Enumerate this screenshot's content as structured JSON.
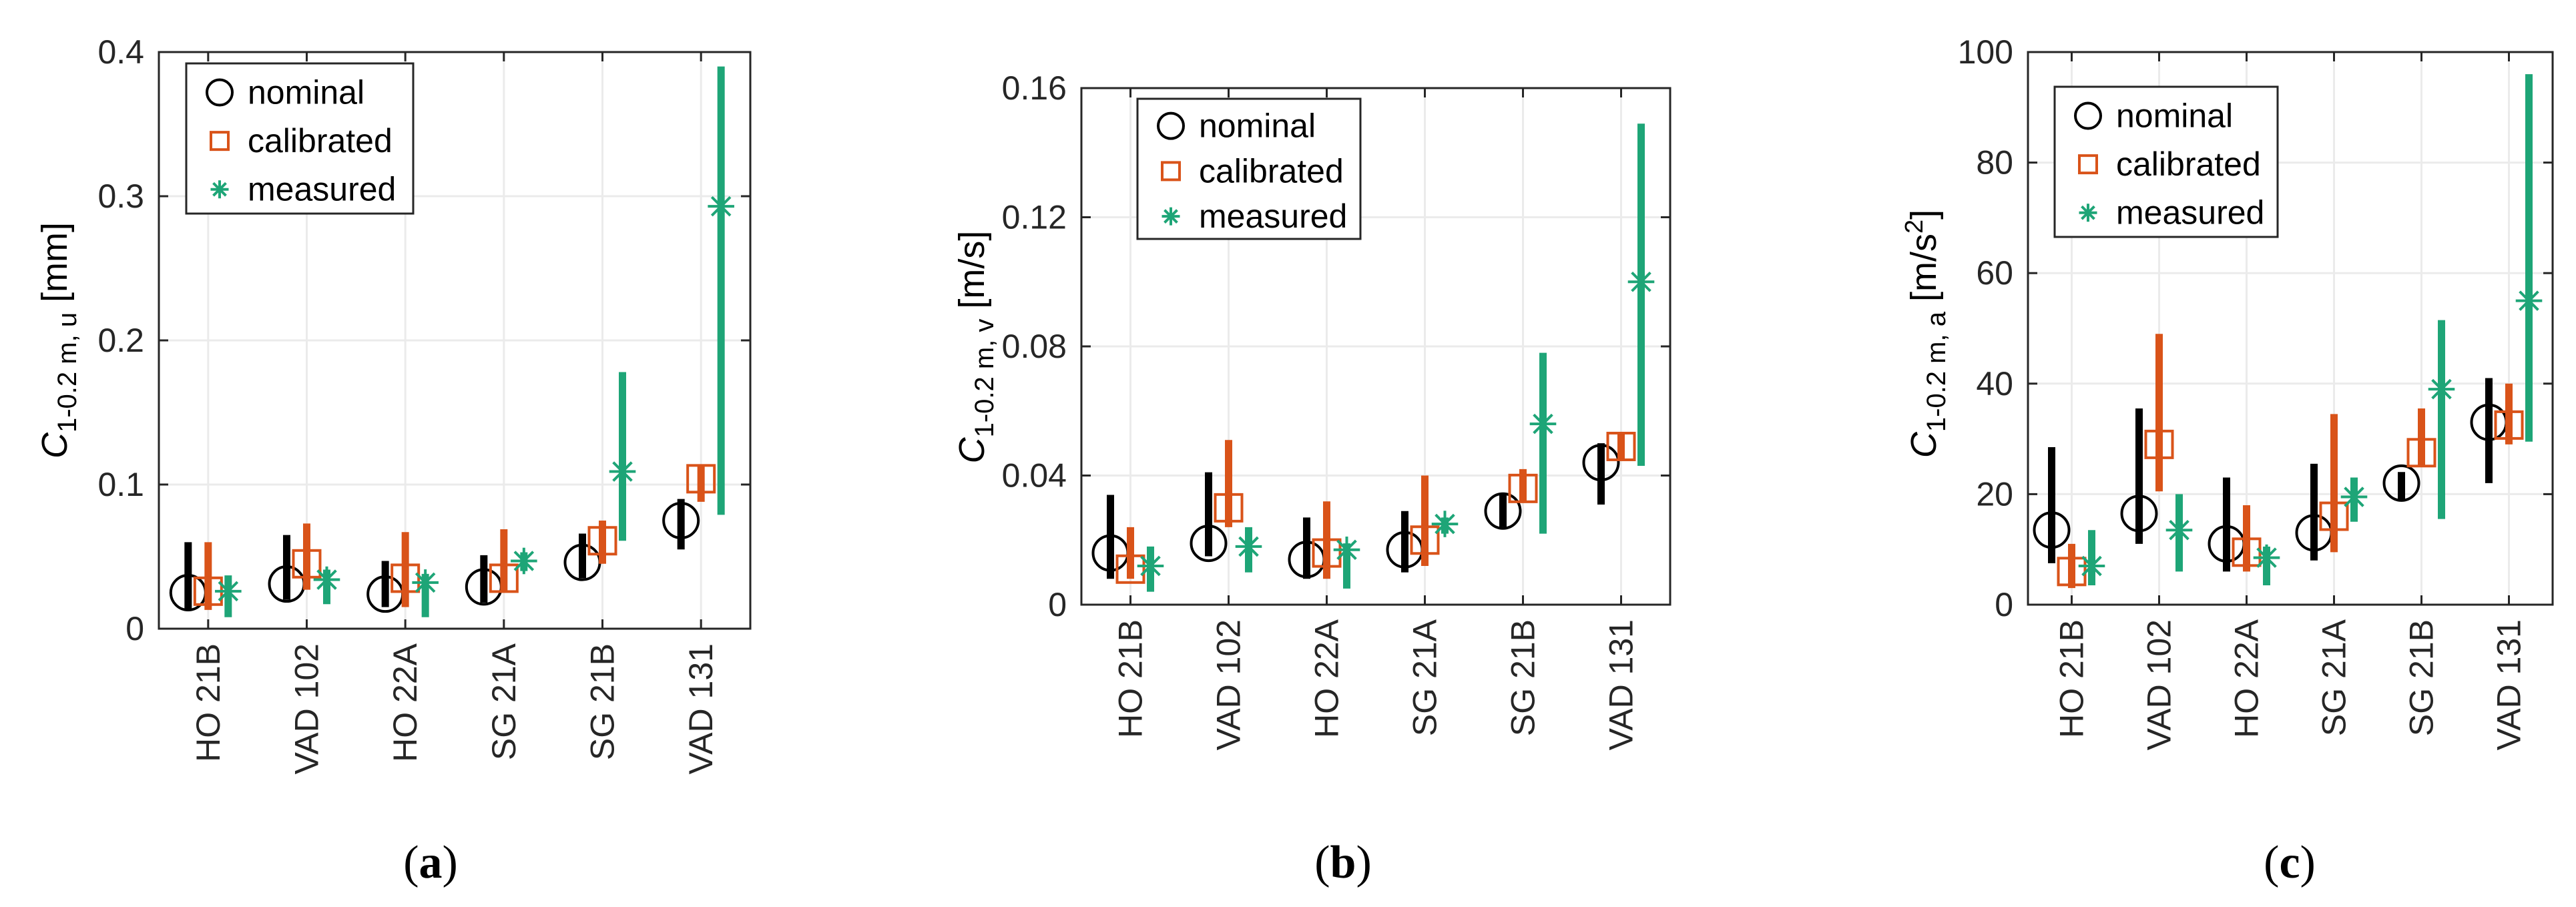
{
  "chart_data": [
    {
      "type": "scatter",
      "panel": "a",
      "caption_open": "(",
      "caption_letter": "a",
      "caption_close": ")",
      "ylabel": {
        "var": "C",
        "sub": "1-0.2 m, u",
        "unit": " [mm]"
      },
      "ylim": [
        0,
        0.4
      ],
      "yticks": [
        "0",
        "0.1",
        "0.2",
        "0.3",
        "0.4"
      ],
      "categories": [
        "HO 21B",
        "VAD 102",
        "HO 22A",
        "SG 21A",
        "SG 21B",
        "VAD 131"
      ],
      "grid": true,
      "legend": "top-left",
      "series": [
        {
          "name": "nominal",
          "marker": "circle",
          "color": "#000000",
          "values": [
            0.025,
            0.031,
            0.024,
            0.029,
            0.046,
            0.075
          ],
          "low": [
            0.013,
            0.02,
            0.015,
            0.018,
            0.035,
            0.055
          ],
          "high": [
            0.06,
            0.065,
            0.047,
            0.051,
            0.066,
            0.09
          ]
        },
        {
          "name": "calibrated",
          "marker": "square",
          "color": "#d95319",
          "values": [
            0.026,
            0.045,
            0.035,
            0.035,
            0.061,
            0.104
          ],
          "low": [
            0.013,
            0.027,
            0.015,
            0.025,
            0.045,
            0.088
          ],
          "high": [
            0.06,
            0.073,
            0.067,
            0.069,
            0.075,
            0.113
          ]
        },
        {
          "name": "measured",
          "marker": "star",
          "color": "#1ea577",
          "values": [
            0.026,
            0.034,
            0.032,
            0.047,
            0.109,
            0.293
          ],
          "low": [
            0.008,
            0.017,
            0.008,
            0.04,
            0.061,
            0.079
          ],
          "high": [
            0.037,
            0.041,
            0.038,
            0.053,
            0.178,
            0.39
          ]
        }
      ]
    },
    {
      "type": "scatter",
      "panel": "b",
      "caption_open": "(",
      "caption_letter": "b",
      "caption_close": ")",
      "ylabel": {
        "var": "C",
        "sub": "1-0.2 m, v",
        "unit": " [m/s]"
      },
      "ylim": [
        0,
        0.16
      ],
      "yticks": [
        "0",
        "0.04",
        "0.08",
        "0.12",
        "0.16"
      ],
      "categories": [
        "HO 21B",
        "VAD 102",
        "HO 22A",
        "SG 21A",
        "SG 21B",
        "VAD 131"
      ],
      "grid": true,
      "legend": "top-left",
      "series": [
        {
          "name": "nominal",
          "marker": "circle",
          "color": "#000000",
          "values": [
            0.016,
            0.019,
            0.014,
            0.017,
            0.029,
            0.044
          ],
          "low": [
            0.008,
            0.015,
            0.008,
            0.01,
            0.024,
            0.031
          ],
          "high": [
            0.034,
            0.041,
            0.027,
            0.029,
            0.034,
            0.05
          ]
        },
        {
          "name": "calibrated",
          "marker": "square",
          "color": "#d95319",
          "values": [
            0.011,
            0.03,
            0.016,
            0.02,
            0.036,
            0.049
          ],
          "low": [
            0.008,
            0.024,
            0.008,
            0.012,
            0.032,
            0.045
          ],
          "high": [
            0.024,
            0.051,
            0.032,
            0.04,
            0.042,
            0.053
          ]
        },
        {
          "name": "measured",
          "marker": "star",
          "color": "#1ea577",
          "values": [
            0.012,
            0.018,
            0.017,
            0.025,
            0.056,
            0.1
          ],
          "low": [
            0.004,
            0.01,
            0.005,
            0.022,
            0.022,
            0.043
          ],
          "high": [
            0.018,
            0.024,
            0.019,
            0.027,
            0.078,
            0.149
          ]
        }
      ]
    },
    {
      "type": "scatter",
      "panel": "c",
      "caption_open": "(",
      "caption_letter": "c",
      "caption_close": ")",
      "ylabel": {
        "var": "C",
        "sub": "1-0.2 m, a",
        "unit": " [m/s",
        "sup": "2",
        "unit_end": "]"
      },
      "ylim": [
        0,
        100
      ],
      "yticks": [
        "0",
        "20",
        "40",
        "60",
        "80",
        "100"
      ],
      "categories": [
        "HO 21B",
        "VAD 102",
        "HO 22A",
        "SG 21A",
        "SG 21B",
        "VAD 131"
      ],
      "grid": true,
      "legend": "top-left",
      "series": [
        {
          "name": "nominal",
          "marker": "circle",
          "color": "#000000",
          "values": [
            13.5,
            16.5,
            11.0,
            13.0,
            22.0,
            33.0
          ],
          "low": [
            7.5,
            11.0,
            6.0,
            8.0,
            19.0,
            22.0
          ],
          "high": [
            28.5,
            35.5,
            23.0,
            25.5,
            24.0,
            41.0
          ]
        },
        {
          "name": "calibrated",
          "marker": "square",
          "color": "#d95319",
          "values": [
            6.0,
            29.0,
            9.5,
            16.0,
            27.5,
            32.5
          ],
          "low": [
            3.0,
            20.5,
            6.0,
            9.5,
            25.0,
            29.0
          ],
          "high": [
            11.0,
            49.0,
            18.0,
            34.5,
            35.5,
            40.0
          ]
        },
        {
          "name": "measured",
          "marker": "star",
          "color": "#1ea577",
          "values": [
            7.0,
            13.5,
            8.5,
            19.5,
            39.0,
            55.0
          ],
          "low": [
            3.5,
            6.0,
            3.5,
            15.0,
            15.5,
            29.5
          ],
          "high": [
            13.5,
            20.0,
            10.5,
            23.0,
            51.5,
            96.0
          ]
        }
      ]
    }
  ]
}
